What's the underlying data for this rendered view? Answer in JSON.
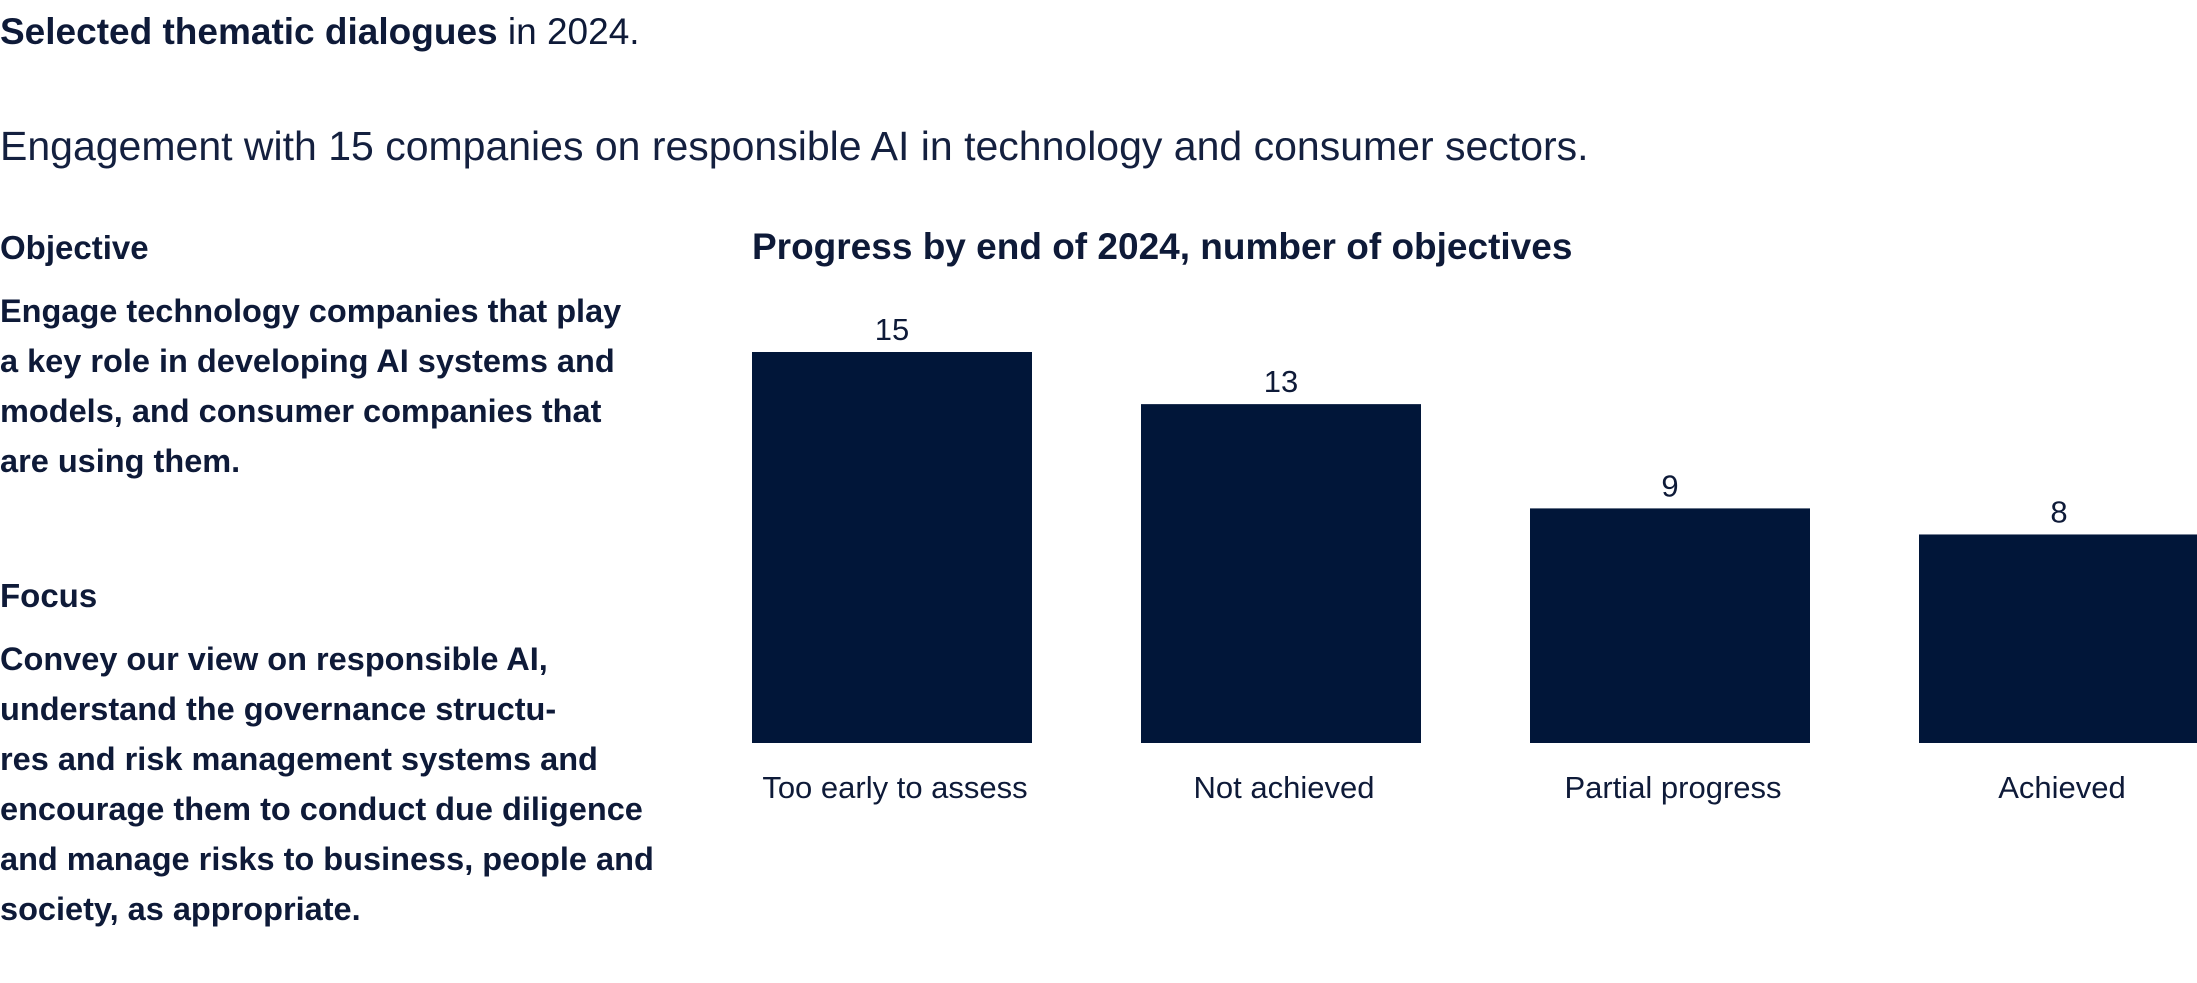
{
  "heading": {
    "strong": "Selected thematic dialogues",
    "rest": " in 2024."
  },
  "subtitle": "Engagement with 15 companies on responsible AI in technology and consumer sectors.",
  "objective": {
    "label": "Objective",
    "lines": [
      "Engage technology companies that play",
      "a key role in developing AI systems and",
      "models, and consumer companies that",
      "are using them."
    ]
  },
  "focus": {
    "label": "Focus",
    "lines": [
      "Convey our view on responsible AI,",
      "understand the governance structu-",
      "res and risk management systems and",
      "encourage them to conduct due diligence",
      "and manage risks to business, people and",
      "society, as appropriate."
    ]
  },
  "colors": {
    "bar": "#011639",
    "text": "#0e1a38"
  },
  "chart_data": {
    "type": "bar",
    "title": "Progress by end of 2024, number of objectives",
    "categories": [
      "Too early to assess",
      "Not achieved",
      "Partial progress",
      "Achieved"
    ],
    "values": [
      15,
      13,
      9,
      8
    ],
    "data_labels": [
      "15",
      "13",
      "9",
      "8"
    ],
    "ylim": [
      0,
      15
    ],
    "grid": false,
    "legend": "none"
  }
}
